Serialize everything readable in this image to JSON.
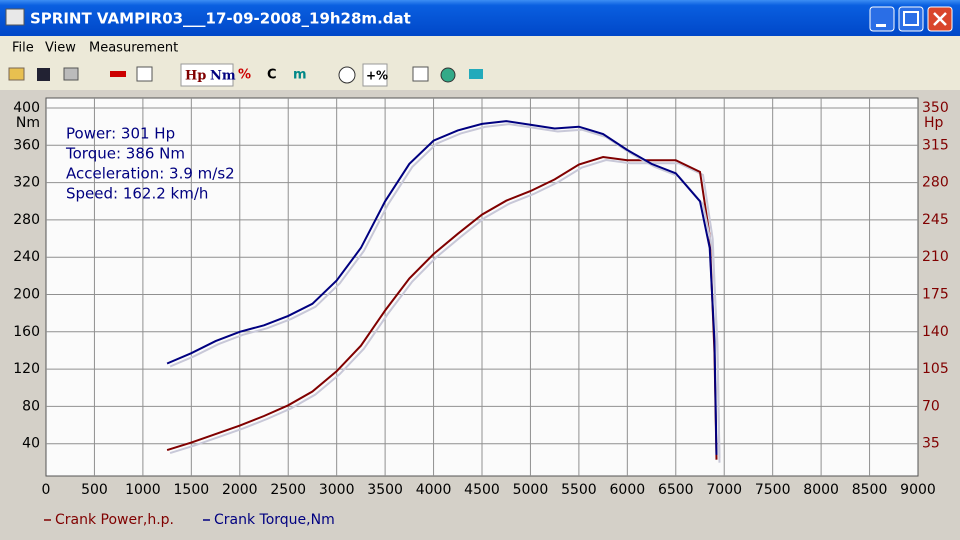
{
  "window": {
    "title": "SPRINT  VAMPIR03___17-09-2008_19h28m.dat",
    "menu": [
      "File",
      "View",
      "Measurement"
    ],
    "toolbar": [
      "Hp",
      "Nm",
      "%",
      "C",
      "m",
      "+%"
    ]
  },
  "chart_data": {
    "type": "line",
    "y_label": "Nm",
    "y2_label": "Hp",
    "annotations": [
      "Power: 301 Hp",
      "Torque: 386 Nm",
      "Acceleration: 3.9 m/s2",
      "Speed: 162.2 km/h"
    ],
    "x": [
      1250,
      1500,
      1750,
      2000,
      2250,
      2500,
      2750,
      3000,
      3250,
      3500,
      3750,
      4000,
      4250,
      4500,
      4750,
      5000,
      5250,
      5500,
      5750,
      6000,
      6250,
      6500,
      6750,
      6850,
      6900,
      6920
    ],
    "series": [
      {
        "name": "Crank Power,h.p.",
        "color": "#800000",
        "axis": "y2",
        "values": [
          29,
          36,
          44,
          52,
          61,
          71,
          84,
          103,
          127,
          160,
          190,
          213,
          232,
          250,
          263,
          272,
          283,
          297,
          304,
          301,
          301,
          301,
          290,
          230,
          120,
          20
        ]
      },
      {
        "name": "Crank Torque,Nm",
        "color": "#000080",
        "values": [
          126,
          137,
          150,
          160,
          167,
          177,
          190,
          215,
          250,
          300,
          340,
          365,
          376,
          383,
          386,
          382,
          378,
          380,
          372,
          355,
          340,
          330,
          300,
          250,
          150,
          28
        ]
      }
    ],
    "xlim": [
      0,
      9000
    ],
    "xticks": [
      0,
      500,
      1000,
      1500,
      2000,
      2500,
      3000,
      3500,
      4000,
      4500,
      5000,
      5500,
      6000,
      6500,
      7000,
      7500,
      8000,
      8500,
      9000
    ],
    "ylim": [
      0,
      400
    ],
    "yticks": [
      40,
      80,
      120,
      160,
      200,
      240,
      280,
      320,
      360,
      400
    ],
    "y2lim": [
      0,
      350
    ],
    "y2ticks": [
      35,
      70,
      105,
      140,
      175,
      210,
      245,
      280,
      315,
      350
    ],
    "grid": true
  }
}
